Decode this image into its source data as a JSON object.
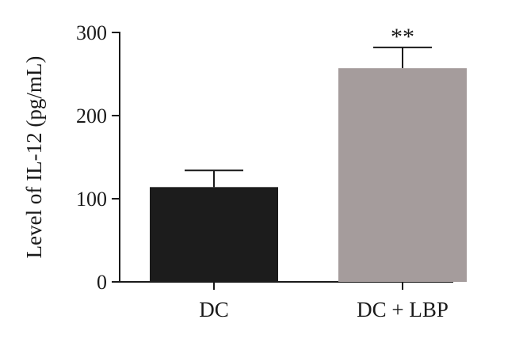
{
  "chart_data": {
    "type": "bar",
    "categories": [
      "DC",
      "DC + LBP"
    ],
    "values": [
      114,
      257
    ],
    "errors": [
      20,
      25
    ],
    "annotations": [
      "",
      "**"
    ],
    "ylabel": "Level of IL-12 (pg/mL)",
    "xlabel": "",
    "ylim": [
      0,
      300
    ],
    "yticks": [
      0,
      100,
      200,
      300
    ],
    "colors": [
      "#1c1c1c",
      "#a59c9c"
    ],
    "grid": false,
    "legend": "none"
  }
}
